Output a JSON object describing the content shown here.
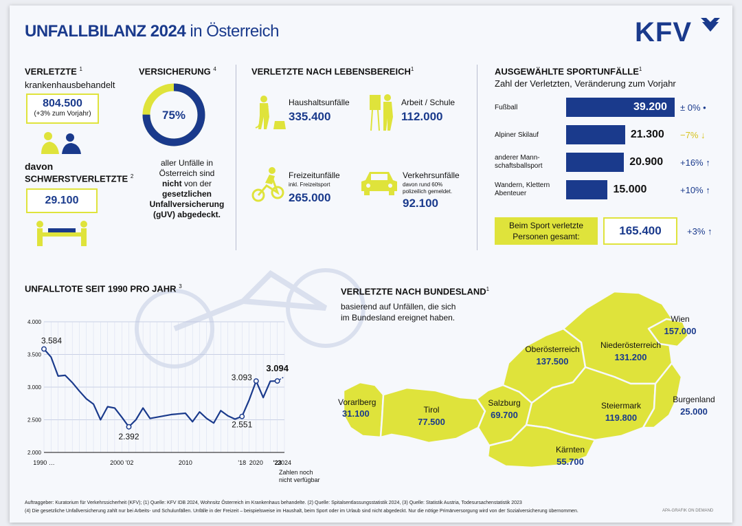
{
  "header": {
    "title_bold": "UNFALLBILANZ 2024",
    "title_light": "in Österreich",
    "logo_text": "KFV"
  },
  "verletzte": {
    "heading": "VERLETZTE",
    "note": "1",
    "subtitle": "krankenhausbehandelt",
    "value": "804.500",
    "change": "(+3% zum Vorjahr)",
    "severe_label1": "davon",
    "severe_label2": "SCHWERSTVERLETZTE",
    "severe_note": "2",
    "severe_value": "29.100"
  },
  "versicherung": {
    "heading": "VERSICHERUNG",
    "note": "4",
    "percent_label": "75%",
    "percent_value": 75,
    "text1": "aller Unfälle in",
    "text2": "Österreich sind",
    "text3": "nicht",
    "text3b": "von der",
    "text4": "gesetzlichen",
    "text5": "Unfallversicherung",
    "text6": "(gUV) abgedeckt."
  },
  "lebensbereich": {
    "heading": "VERLETZTE NACH LEBENSBEREICH",
    "note": "1",
    "items": [
      {
        "label": "Haushaltsunfälle",
        "sub": "",
        "value": "335.400"
      },
      {
        "label": "Arbeit / Schule",
        "sub": "",
        "value": "112.000"
      },
      {
        "label": "Freizeitunfälle",
        "sub": "inkl. Freizeitsport",
        "value": "265.000"
      },
      {
        "label": "Verkehrsunfälle",
        "sub": "davon rund 60%",
        "sub2": "polizeilich gemeldet.",
        "value": "92.100"
      }
    ]
  },
  "sport": {
    "heading": "AUSGEWÄHLTE SPORTUNFÄLLE",
    "note": "1",
    "subtitle": "Zahl der Verletzten, Veränderung zum Vorjahr",
    "items": [
      {
        "label": "Fußball",
        "label2": "",
        "value": 39200,
        "value_text": "39.200",
        "change": "± 0%",
        "dir": "•"
      },
      {
        "label": "Alpiner Skilauf",
        "label2": "",
        "value": 21300,
        "value_text": "21.300",
        "change": "−7%",
        "dir": "↓"
      },
      {
        "label": "anderer Mann-",
        "label2": "schaftsballsport",
        "value": 20900,
        "value_text": "20.900",
        "change": "+16%",
        "dir": "↑"
      },
      {
        "label": "Wandern, Klettern",
        "label2": "Abenteuer",
        "value": 15000,
        "value_text": "15.000",
        "change": "+10%",
        "dir": "↑"
      }
    ],
    "total_label1": "Beim Sport verletzte",
    "total_label2": "Personen gesamt:",
    "total_value": "165.400",
    "total_change": "+3%",
    "total_dir": "↑",
    "colors": {
      "bar": "#1a3a8c",
      "down": "#d6c21a"
    }
  },
  "unfalltote": {
    "heading": "UNFALLTOTE SEIT 1990 PRO JAHR",
    "note": "3",
    "annotation_missing1": "Zahlen noch",
    "annotation_missing2": "nicht verfügbar"
  },
  "chart_data": {
    "type": "line",
    "title": "UNFALLTOTE SEIT 1990 PRO JAHR",
    "ylim": [
      2000,
      4000
    ],
    "yticks": [
      "2.000",
      "2.500",
      "3.000",
      "3.500",
      "4.000"
    ],
    "ytick_values": [
      2000,
      2500,
      3000,
      3500,
      4000
    ],
    "xtick_labels": [
      "1990 …",
      "2000 '02",
      "2010",
      "'18",
      "2020",
      "'23",
      "2024"
    ],
    "xtick_years": [
      1990,
      2001,
      2010,
      2018,
      2020,
      2023,
      2024
    ],
    "x": [
      1990,
      1991,
      1992,
      1993,
      1994,
      1995,
      1996,
      1997,
      1998,
      1999,
      2000,
      2001,
      2002,
      2003,
      2004,
      2005,
      2006,
      2007,
      2008,
      2009,
      2010,
      2011,
      2012,
      2013,
      2014,
      2015,
      2016,
      2017,
      2018,
      2019,
      2020,
      2021,
      2022,
      2023
    ],
    "y": [
      3584,
      3460,
      3170,
      3180,
      3070,
      2940,
      2820,
      2740,
      2500,
      2700,
      2680,
      2540,
      2392,
      2500,
      2680,
      2520,
      2540,
      2560,
      2580,
      2590,
      2600,
      2470,
      2620,
      2520,
      2450,
      2640,
      2560,
      2510,
      2551,
      2800,
      3093,
      2840,
      3090,
      3094
    ],
    "annotations": [
      {
        "year": 1990,
        "value": 3584,
        "text": "3.584"
      },
      {
        "year": 2002,
        "value": 2392,
        "text": "2.392"
      },
      {
        "year": 2018,
        "value": 2551,
        "text": "2.551"
      },
      {
        "year": 2020,
        "value": 3093,
        "text": "3.093"
      },
      {
        "year": 2023,
        "value": 3094,
        "text": "3.094"
      }
    ],
    "grid": true,
    "color": "#1a3a8c"
  },
  "bundesland": {
    "heading": "VERLETZTE NACH BUNDESLAND",
    "note": "1",
    "subtitle1": "basierend auf Unfällen, die sich",
    "subtitle2": "im Bundesland ereignet haben.",
    "states": [
      {
        "name": "Vorarlberg",
        "value": "31.100"
      },
      {
        "name": "Tirol",
        "value": "77.500"
      },
      {
        "name": "Salzburg",
        "value": "69.700"
      },
      {
        "name": "Oberösterreich",
        "value": "137.500"
      },
      {
        "name": "Niederösterreich",
        "value": "131.200"
      },
      {
        "name": "Wien",
        "value": "157.000"
      },
      {
        "name": "Steiermark",
        "value": "119.800"
      },
      {
        "name": "Burgenland",
        "value": "25.000"
      },
      {
        "name": "Kärnten",
        "value": "55.700"
      }
    ],
    "map_color": "#dfe33b"
  },
  "footer": {
    "line1": "Auftraggeber: Kuratorium für Verkehrssicherheit (KFV); (1) Quelle: KFV IDB 2024, Wohnsitz Österreich im Krankenhaus behandelte. (2) Quelle: Spitalsentlassungsstatistik 2024, (3) Quelle: Statistik Austria, Todesursachenstatistik 2023",
    "line2": "(4) Die gesetzliche Unfallversicherung zahlt nur bei Arbeits- und Schulunfällen. Unfälle in der Freizeit – beispielsweise im Haushalt, beim Sport oder im Urlaub sind nicht abgedeckt. Nur die nötige Primärversorgung wird von der Sozialversicherung übernommen.",
    "credit": "APA-GRAFIK ON DEMAND"
  }
}
